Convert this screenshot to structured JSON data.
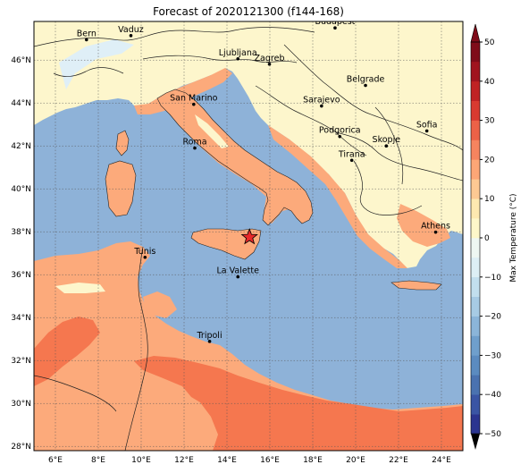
{
  "title": "Forecast of 2020121300 (f144-168)",
  "lon_ticks": [
    "6°E",
    "8°E",
    "10°E",
    "12°E",
    "14°E",
    "16°E",
    "18°E",
    "20°E",
    "22°E",
    "24°E"
  ],
  "lat_ticks": [
    "46°N",
    "44°N",
    "42°N",
    "40°N",
    "38°N",
    "36°N",
    "34°N",
    "32°N",
    "30°N",
    "28°N"
  ],
  "cities": [
    {
      "name": "Bern",
      "lon": 7.45,
      "lat": 46.95
    },
    {
      "name": "Vaduz",
      "lon": 9.52,
      "lat": 47.14
    },
    {
      "name": "Budapest",
      "lon": 19.04,
      "lat": 47.5
    },
    {
      "name": "Ljubljana",
      "lon": 14.51,
      "lat": 46.06
    },
    {
      "name": "Zagreb",
      "lon": 15.98,
      "lat": 45.81
    },
    {
      "name": "Belgrade",
      "lon": 20.46,
      "lat": 44.82
    },
    {
      "name": "San Marino",
      "lon": 12.45,
      "lat": 43.94
    },
    {
      "name": "Sarajevo",
      "lon": 18.41,
      "lat": 43.86
    },
    {
      "name": "Sofia",
      "lon": 23.32,
      "lat": 42.7
    },
    {
      "name": "Roma",
      "lon": 12.5,
      "lat": 41.9
    },
    {
      "name": "Podgorica",
      "lon": 19.26,
      "lat": 42.44
    },
    {
      "name": "Skopje",
      "lon": 21.43,
      "lat": 42.0
    },
    {
      "name": "Tirana",
      "lon": 19.82,
      "lat": 41.33
    },
    {
      "name": "Athens",
      "lon": 23.73,
      "lat": 37.98
    },
    {
      "name": "Tunis",
      "lon": 10.18,
      "lat": 36.81
    },
    {
      "name": "La Valette",
      "lon": 14.51,
      "lat": 35.9
    },
    {
      "name": "Tripoli",
      "lon": 13.19,
      "lat": 32.89
    }
  ],
  "marker": {
    "lon": 15.05,
    "lat": 37.75,
    "symbol": "star",
    "color": "#e8282a"
  },
  "colorbar": {
    "label": "Max Temperature (°C)",
    "tick_labels": [
      "50",
      "40",
      "30",
      "20",
      "10",
      "0",
      "−10",
      "−20",
      "−30",
      "−40",
      "−50"
    ],
    "levels": [
      -50,
      -45,
      -40,
      -35,
      -30,
      -25,
      -20,
      -15,
      -10,
      -5,
      0,
      5,
      10,
      15,
      20,
      25,
      30,
      35,
      40,
      45,
      50
    ],
    "colors": [
      "#2b3590",
      "#3a55a4",
      "#4a72b0",
      "#5b8bc0",
      "#6f9fcc",
      "#8bb5d9",
      "#a7cbe4",
      "#c2dfee",
      "#ddeff5",
      "#eef7f2",
      "#fdf7c9",
      "#fde9b0",
      "#fdc993",
      "#fca676",
      "#f6845f",
      "#ec6147",
      "#d93a30",
      "#c02224",
      "#a0141f",
      "#7f0c1a"
    ]
  },
  "palette": {
    "sea": "#8eb2d8",
    "land_cool": "#fdf6cc",
    "land_mild": "#fcaa7b",
    "land_warm": "#f5774f",
    "cold_patch": "#dfeff7"
  }
}
